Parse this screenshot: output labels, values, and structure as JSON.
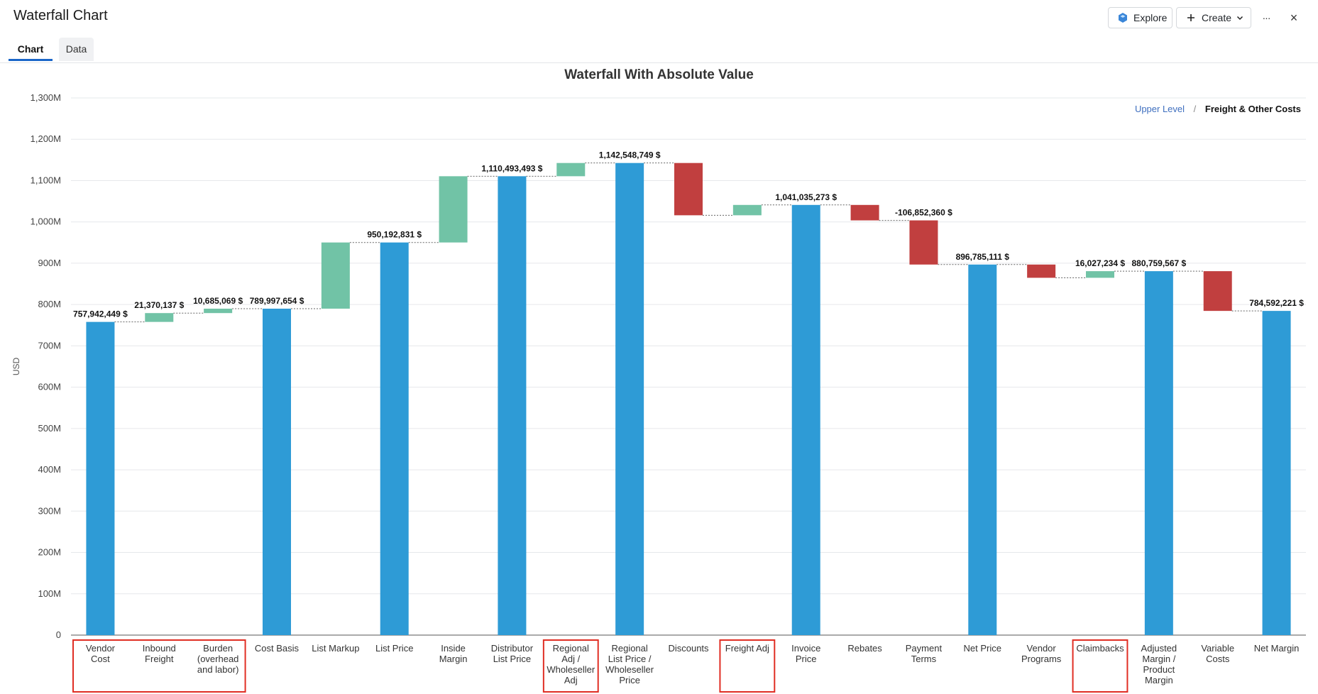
{
  "window": {
    "title": "Waterfall Chart",
    "explore_label": "Explore",
    "create_label": "Create",
    "more_label": "···",
    "close_label": "×"
  },
  "tabs": [
    {
      "label": "Chart",
      "active": true
    },
    {
      "label": "Data",
      "active": false
    }
  ],
  "breadcrumb": {
    "parent": "Upper Level",
    "separator": "/",
    "current": "Freight & Other Costs"
  },
  "colors": {
    "total": "#2e9bd6",
    "increase": "#71c3a6",
    "decrease": "#c13f3f",
    "highlight": "#e02e24"
  },
  "chart_data": {
    "type": "waterfall",
    "title": "Waterfall With Absolute Value",
    "ylabel": "USD",
    "xlabel": "",
    "ylim": [
      0,
      1300000000
    ],
    "yticks": [
      "0",
      "100M",
      "200M",
      "300M",
      "400M",
      "500M",
      "600M",
      "700M",
      "800M",
      "900M",
      "1,000M",
      "1,100M",
      "1,200M",
      "1,300M"
    ],
    "ytick_values": [
      0,
      100000000,
      200000000,
      300000000,
      400000000,
      500000000,
      600000000,
      700000000,
      800000000,
      900000000,
      1000000000,
      1100000000,
      1200000000,
      1300000000
    ],
    "grid": true,
    "bars": [
      {
        "category": "Vendor Cost",
        "lines": [
          "Vendor",
          "Cost"
        ],
        "kind": "total",
        "start": 0,
        "end": 757942449,
        "label": "757,942,449 $",
        "highlight_group": 1
      },
      {
        "category": "Inbound Freight",
        "lines": [
          "Inbound",
          "Freight"
        ],
        "kind": "increase",
        "start": 757942449,
        "end": 779312586,
        "label": "21,370,137 $",
        "highlight_group": 1
      },
      {
        "category": "Burden (overhead and labor)",
        "lines": [
          "Burden",
          "(overhead",
          "and labor)"
        ],
        "kind": "increase",
        "start": 779312586,
        "end": 789997654,
        "label": "10,685,069 $",
        "highlight_group": 1
      },
      {
        "category": "Cost Basis",
        "lines": [
          "Cost Basis"
        ],
        "kind": "total",
        "start": 0,
        "end": 789997654,
        "label": "789,997,654 $"
      },
      {
        "category": "List Markup",
        "lines": [
          "List Markup"
        ],
        "kind": "increase",
        "start": 789997654,
        "end": 950192831,
        "label": ""
      },
      {
        "category": "List Price",
        "lines": [
          "List Price"
        ],
        "kind": "total",
        "start": 0,
        "end": 950192831,
        "label": "950,192,831 $"
      },
      {
        "category": "Inside Margin",
        "lines": [
          "Inside",
          "Margin"
        ],
        "kind": "increase",
        "start": 950192831,
        "end": 1110493493,
        "label": ""
      },
      {
        "category": "Distributor List Price",
        "lines": [
          "Distributor",
          "List Price"
        ],
        "kind": "total",
        "start": 0,
        "end": 1110493493,
        "label": "1,110,493,493 $"
      },
      {
        "category": "Regional Adj / Wholeseller Adj",
        "lines": [
          "Regional",
          "Adj /",
          "Wholeseller",
          "Adj"
        ],
        "kind": "increase",
        "start": 1110493493,
        "end": 1142548749,
        "label": "",
        "highlight_group": 2
      },
      {
        "category": "Regional List Price / Wholeseller Price",
        "lines": [
          "Regional",
          "List Price /",
          "Wholeseller",
          "Price"
        ],
        "kind": "total",
        "start": 0,
        "end": 1142548749,
        "label": "1,142,548,749 $"
      },
      {
        "category": "Discounts",
        "lines": [
          "Discounts"
        ],
        "kind": "decrease",
        "start": 1142548749,
        "end": 1016000000,
        "label": ""
      },
      {
        "category": "Freight Adj",
        "lines": [
          "Freight Adj"
        ],
        "kind": "increase",
        "start": 1016000000,
        "end": 1041035273,
        "label": "",
        "highlight_group": 3
      },
      {
        "category": "Invoice Price",
        "lines": [
          "Invoice",
          "Price"
        ],
        "kind": "total",
        "start": 0,
        "end": 1041035273,
        "label": "1,041,035,273 $"
      },
      {
        "category": "Rebates",
        "lines": [
          "Rebates"
        ],
        "kind": "decrease",
        "start": 1041035273,
        "end": 1003637471,
        "label": ""
      },
      {
        "category": "Payment Terms",
        "lines": [
          "Payment",
          "Terms"
        ],
        "kind": "decrease",
        "start": 1003637471,
        "end": 896785111,
        "label": "-106,852,360 $"
      },
      {
        "category": "Net Price",
        "lines": [
          "Net Price"
        ],
        "kind": "total",
        "start": 0,
        "end": 896785111,
        "label": "896,785,111 $"
      },
      {
        "category": "Vendor Programs",
        "lines": [
          "Vendor",
          "Programs"
        ],
        "kind": "decrease",
        "start": 896785111,
        "end": 864732333,
        "label": ""
      },
      {
        "category": "Claimbacks",
        "lines": [
          "Claimbacks"
        ],
        "kind": "increase",
        "start": 864732333,
        "end": 880759567,
        "label": "16,027,234 $",
        "highlight_group": 4
      },
      {
        "category": "Adjusted Margin / Product Margin",
        "lines": [
          "Adjusted",
          "Margin /",
          "Product",
          "Margin"
        ],
        "kind": "total",
        "start": 0,
        "end": 880759567,
        "label": "880,759,567 $"
      },
      {
        "category": "Variable Costs",
        "lines": [
          "Variable",
          "Costs"
        ],
        "kind": "decrease",
        "start": 880759567,
        "end": 784592221,
        "label": ""
      },
      {
        "category": "Net Margin",
        "lines": [
          "Net Margin"
        ],
        "kind": "total",
        "start": 0,
        "end": 784592221,
        "label": "784,592,221 $"
      }
    ]
  }
}
